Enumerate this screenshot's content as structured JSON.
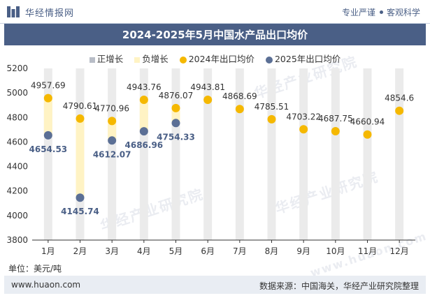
{
  "header": {
    "brand": "华经情报网",
    "slogan_left": "专业严谨",
    "slogan_right": "客观科学"
  },
  "title": "2024-2025年5月中国水产品出口均价",
  "legend": {
    "increase": "正增长",
    "decrease": "负增长",
    "series_2024": "2024年出口均价",
    "series_2025": "2025年出口均价"
  },
  "unit_label": "单位：美元/吨",
  "footer": {
    "website": "www.huaon.com",
    "source": "数据来源：中国海关，华经产业研究院整理"
  },
  "watermark_text": "华经产业研究院",
  "watermark_url": "www.huaon.com",
  "colors": {
    "header_bar": "#4a5f86",
    "series_2024": "#f5b800",
    "series_2025": "#5b6f95",
    "increase_bar": "#b8bdc7",
    "decrease_bar": "#fff3c4",
    "month_bar": "#ebebeb"
  },
  "chart_data": {
    "type": "scatter",
    "categories": [
      "1月",
      "2月",
      "3月",
      "4月",
      "5月",
      "6月",
      "7月",
      "8月",
      "9月",
      "10月",
      "11月",
      "12月"
    ],
    "series": [
      {
        "name": "2024年出口均价",
        "values": [
          4957.69,
          4790.61,
          4770.96,
          4943.76,
          4876.07,
          4943.81,
          4868.69,
          4785.51,
          4703.22,
          4687.75,
          4660.94,
          4854.6
        ]
      },
      {
        "name": "2025年出口均价",
        "values": [
          4654.53,
          4145.74,
          4612.07,
          4686.96,
          4754.33,
          null,
          null,
          null,
          null,
          null,
          null,
          null
        ]
      }
    ],
    "change_bars": {
      "decrease": [
        "1月",
        "2月",
        "3月",
        "4月",
        "5月"
      ],
      "increase": []
    },
    "ylim": [
      3800,
      5200
    ],
    "yticks": [
      3800,
      4000,
      4200,
      4400,
      4600,
      4800,
      5000,
      5200
    ],
    "grid": false,
    "legend_position": "top"
  }
}
